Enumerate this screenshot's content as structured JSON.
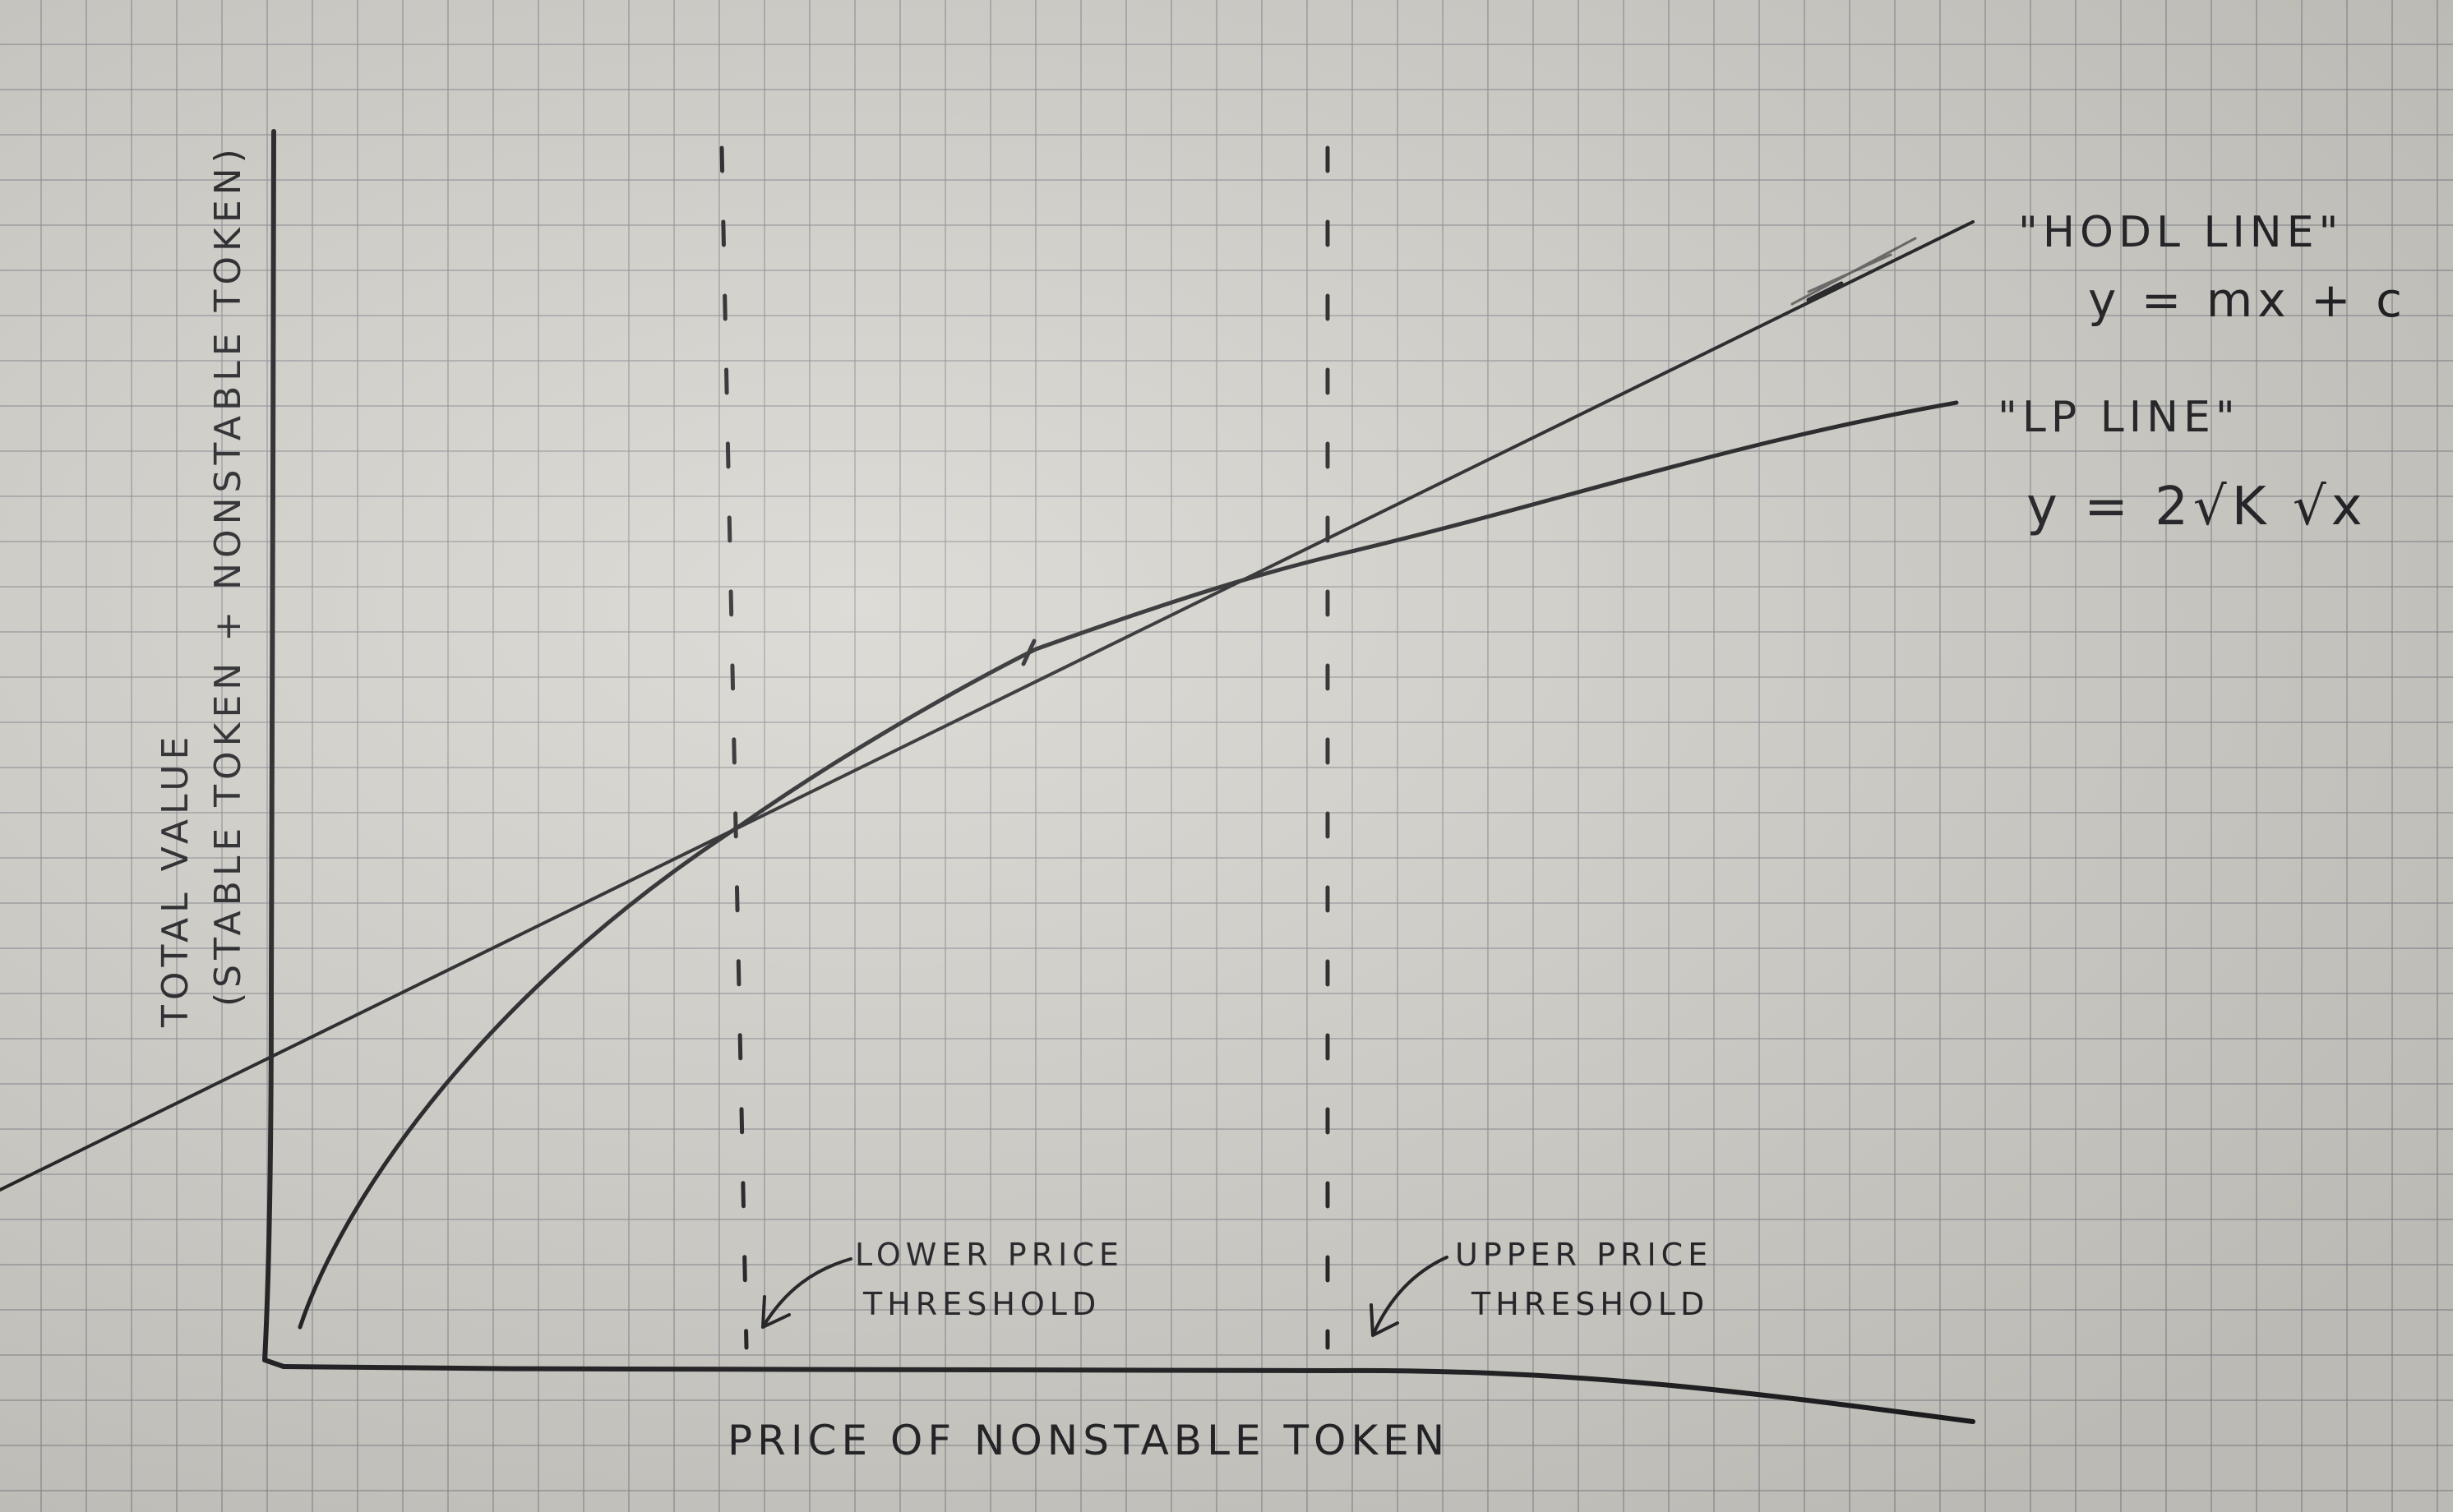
{
  "diagram": {
    "y_axis_label_line1": "TOTAL VALUE",
    "y_axis_label_line2": "(STABLE TOKEN + NONSTABLE TOKEN)",
    "x_axis_label": "PRICE OF NONSTABLE TOKEN",
    "hodl_line": {
      "name": "\"HODL LINE\"",
      "equation": "y = mx + c"
    },
    "lp_line": {
      "name": "\"LP LINE\"",
      "equation": "y = 2√K √x"
    },
    "lower_threshold": {
      "line1": "LOWER PRICE",
      "line2": "THRESHOLD"
    },
    "upper_threshold": {
      "line1": "UPPER PRICE",
      "line2": "THRESHOLD"
    },
    "colors": {
      "ink": "#1c1c1f",
      "paper": "#d6d4cd",
      "grid": "#8c8c96"
    }
  }
}
